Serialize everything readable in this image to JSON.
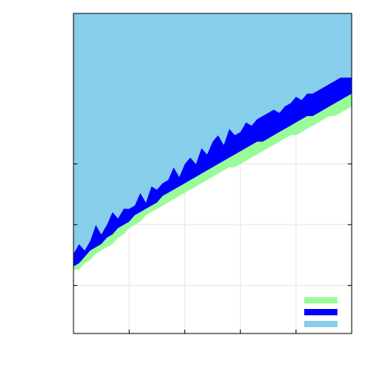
{
  "chart_data": {
    "type": "area",
    "title": "",
    "xlabel": "",
    "ylabel": "",
    "xlim": [
      0,
      1
    ],
    "ylim": [
      0,
      1
    ],
    "grid": true,
    "legend_position": "bottom-right",
    "x_ticks": [
      0,
      0.2,
      0.4,
      0.6,
      0.8,
      1.0
    ],
    "y_ticks": [
      0,
      0.15,
      0.34,
      0.53,
      1.0
    ],
    "x": [
      0,
      0.02,
      0.04,
      0.06,
      0.08,
      0.1,
      0.12,
      0.14,
      0.16,
      0.18,
      0.2,
      0.22,
      0.24,
      0.26,
      0.28,
      0.3,
      0.32,
      0.34,
      0.36,
      0.38,
      0.4,
      0.42,
      0.44,
      0.46,
      0.48,
      0.5,
      0.52,
      0.54,
      0.56,
      0.58,
      0.6,
      0.62,
      0.64,
      0.66,
      0.68,
      0.7,
      0.72,
      0.74,
      0.76,
      0.78,
      0.8,
      0.82,
      0.84,
      0.86,
      0.88,
      0.9,
      0.92,
      0.94,
      0.96,
      0.98,
      1.0
    ],
    "series": [
      {
        "name": "",
        "color": "#98fb98",
        "lower": [
          0.2,
          0.2,
          0.22,
          0.23,
          0.25,
          0.26,
          0.27,
          0.28,
          0.3,
          0.31,
          0.33,
          0.34,
          0.35,
          0.37,
          0.38,
          0.39,
          0.4,
          0.41,
          0.42,
          0.43,
          0.44,
          0.45,
          0.46,
          0.47,
          0.48,
          0.49,
          0.5,
          0.51,
          0.52,
          0.52,
          0.53,
          0.54,
          0.55,
          0.56,
          0.57,
          0.58,
          0.59,
          0.6,
          0.61,
          0.62,
          0.62,
          0.63,
          0.64,
          0.65,
          0.66,
          0.67,
          0.68,
          0.68,
          0.69,
          0.7,
          0.71
        ],
        "upper": [
          0.21,
          0.22,
          0.24,
          0.26,
          0.27,
          0.28,
          0.3,
          0.31,
          0.33,
          0.34,
          0.35,
          0.37,
          0.38,
          0.39,
          0.4,
          0.41,
          0.43,
          0.44,
          0.45,
          0.46,
          0.47,
          0.48,
          0.49,
          0.5,
          0.51,
          0.52,
          0.53,
          0.54,
          0.55,
          0.56,
          0.57,
          0.58,
          0.59,
          0.6,
          0.6,
          0.61,
          0.62,
          0.63,
          0.64,
          0.65,
          0.66,
          0.67,
          0.68,
          0.68,
          0.69,
          0.7,
          0.71,
          0.72,
          0.73,
          0.74,
          0.75
        ]
      },
      {
        "name": "",
        "color": "#0000ff",
        "lower": [
          0.21,
          0.22,
          0.24,
          0.26,
          0.27,
          0.28,
          0.3,
          0.31,
          0.33,
          0.34,
          0.35,
          0.37,
          0.38,
          0.39,
          0.4,
          0.41,
          0.43,
          0.44,
          0.45,
          0.46,
          0.47,
          0.48,
          0.49,
          0.5,
          0.51,
          0.52,
          0.53,
          0.54,
          0.55,
          0.56,
          0.57,
          0.58,
          0.59,
          0.6,
          0.6,
          0.61,
          0.62,
          0.63,
          0.64,
          0.65,
          0.66,
          0.67,
          0.68,
          0.68,
          0.69,
          0.7,
          0.71,
          0.72,
          0.73,
          0.74,
          0.75
        ],
        "upper": [
          0.25,
          0.28,
          0.26,
          0.29,
          0.34,
          0.31,
          0.34,
          0.38,
          0.36,
          0.39,
          0.39,
          0.4,
          0.44,
          0.41,
          0.46,
          0.45,
          0.47,
          0.48,
          0.52,
          0.49,
          0.53,
          0.55,
          0.53,
          0.58,
          0.56,
          0.6,
          0.62,
          0.59,
          0.64,
          0.62,
          0.63,
          0.66,
          0.65,
          0.67,
          0.68,
          0.69,
          0.7,
          0.69,
          0.71,
          0.72,
          0.74,
          0.73,
          0.75,
          0.75,
          0.76,
          0.77,
          0.78,
          0.79,
          0.8,
          0.8,
          0.8
        ]
      },
      {
        "name": "",
        "color": "#87ceeb",
        "lower": [
          0.25,
          0.28,
          0.26,
          0.29,
          0.34,
          0.31,
          0.34,
          0.38,
          0.36,
          0.39,
          0.39,
          0.4,
          0.44,
          0.41,
          0.46,
          0.45,
          0.47,
          0.48,
          0.52,
          0.49,
          0.53,
          0.55,
          0.53,
          0.58,
          0.56,
          0.6,
          0.62,
          0.59,
          0.64,
          0.62,
          0.63,
          0.66,
          0.65,
          0.67,
          0.68,
          0.69,
          0.7,
          0.69,
          0.71,
          0.72,
          0.74,
          0.73,
          0.75,
          0.75,
          0.76,
          0.77,
          0.78,
          0.79,
          0.8,
          0.8,
          0.8
        ],
        "upper": [
          1,
          1,
          1,
          1,
          1,
          1,
          1,
          1,
          1,
          1,
          1,
          1,
          1,
          1,
          1,
          1,
          1,
          1,
          1,
          1,
          1,
          1,
          1,
          1,
          1,
          1,
          1,
          1,
          1,
          1,
          1,
          1,
          1,
          1,
          1,
          1,
          1,
          1,
          1,
          1,
          1,
          1,
          1,
          1,
          1,
          1,
          1,
          1,
          1,
          1,
          1
        ]
      }
    ]
  }
}
